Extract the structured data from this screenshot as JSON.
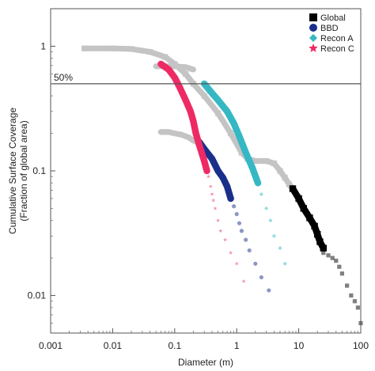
{
  "chart_data": {
    "type": "scatter",
    "title": "",
    "xlabel": "Diameter (m)",
    "ylabel_line1": "Cumulative Surface Coverage",
    "ylabel_line2": "(Fraction of global area)",
    "x_scale": "log",
    "y_scale": "log",
    "xlim": [
      0.001,
      100
    ],
    "ylim": [
      0.005,
      2
    ],
    "x_ticks": [
      {
        "value": 0.001,
        "label": "0.001"
      },
      {
        "value": 0.01,
        "label": "0.01"
      },
      {
        "value": 0.1,
        "label": "0.1"
      },
      {
        "value": 1,
        "label": "1"
      },
      {
        "value": 10,
        "label": "10"
      },
      {
        "value": 100,
        "label": "100"
      }
    ],
    "y_ticks": [
      {
        "value": 1,
        "label": "1"
      },
      {
        "value": 0.1,
        "label": "0.1"
      },
      {
        "value": 0.01,
        "label": "0.01"
      }
    ],
    "grid": false,
    "legend_position": "top-right",
    "reference_line": {
      "y": 0.5,
      "label": "50%"
    },
    "series": [
      {
        "name": "Global",
        "marker": "square",
        "color": "#000000",
        "background_color": "#c4c4c4",
        "segments": [
          {
            "label": "background",
            "x": [
              0.0035,
              0.01,
              0.02,
              0.04,
              0.07,
              0.1,
              0.15,
              0.2,
              0.3,
              0.5,
              0.8,
              1.2,
              1.5,
              2.0,
              3.0,
              4.0,
              5.0,
              6.0,
              7.0,
              8.0
            ],
            "y": [
              0.96,
              0.96,
              0.95,
              0.9,
              0.82,
              0.72,
              0.6,
              0.5,
              0.4,
              0.29,
              0.2,
              0.14,
              0.125,
              0.12,
              0.12,
              0.115,
              0.1,
              0.088,
              0.078,
              0.072
            ]
          },
          {
            "label": "highlight",
            "x": [
              8.0,
              10,
              12,
              15,
              18,
              20,
              22,
              25
            ],
            "y": [
              0.072,
              0.06,
              0.05,
              0.042,
              0.036,
              0.031,
              0.027,
              0.024
            ]
          },
          {
            "label": "tail",
            "x": [
              25,
              30,
              35,
              40,
              45,
              50,
              60,
              70,
              80,
              90,
              100
            ],
            "y": [
              0.022,
              0.021,
              0.02,
              0.019,
              0.017,
              0.015,
              0.012,
              0.01,
              0.009,
              0.008,
              0.006
            ]
          }
        ]
      },
      {
        "name": "BBD",
        "marker": "circle",
        "color": "#1a2f8a",
        "background_color": "#c4c4c4",
        "segments": [
          {
            "label": "background",
            "x": [
              0.06,
              0.08,
              0.1,
              0.13,
              0.17,
              0.2,
              0.24
            ],
            "y": [
              0.205,
              0.205,
              0.2,
              0.195,
              0.185,
              0.175,
              0.168
            ]
          },
          {
            "label": "highlight",
            "x": [
              0.25,
              0.3,
              0.4,
              0.5,
              0.6,
              0.7,
              0.8
            ],
            "y": [
              0.17,
              0.15,
              0.125,
              0.1,
              0.088,
              0.075,
              0.06
            ]
          },
          {
            "label": "tail",
            "x": [
              0.9,
              1.0,
              1.1,
              1.2,
              1.4,
              1.6,
              2.0,
              2.5,
              3.3
            ],
            "y": [
              0.052,
              0.045,
              0.038,
              0.033,
              0.028,
              0.023,
              0.018,
              0.014,
              0.011
            ]
          }
        ]
      },
      {
        "name": "Recon A",
        "marker": "diamond",
        "color": "#35b8c4",
        "background_color": "#c4c4c4",
        "segments": [
          {
            "label": "background",
            "x": [
              0.05,
              0.07,
              0.1,
              0.15,
              0.2
            ],
            "y": [
              0.69,
              0.69,
              0.69,
              0.68,
              0.65
            ]
          },
          {
            "label": "highlight",
            "x": [
              0.3,
              0.4,
              0.5,
              0.7,
              0.9,
              1.1,
              1.4,
              1.8,
              2.2
            ],
            "y": [
              0.5,
              0.42,
              0.37,
              0.3,
              0.24,
              0.19,
              0.14,
              0.105,
              0.08
            ]
          },
          {
            "label": "tail",
            "x": [
              2.5,
              3.0,
              3.5,
              4.0,
              5.0,
              6.0
            ],
            "y": [
              0.065,
              0.05,
              0.04,
              0.03,
              0.024,
              0.018
            ]
          }
        ]
      },
      {
        "name": "Recon C",
        "marker": "star",
        "color": "#ee2a65",
        "background_color": "#c4c4c4",
        "segments": [
          {
            "label": "highlight",
            "x": [
              0.06,
              0.08,
              0.1,
              0.12,
              0.15,
              0.18,
              0.2,
              0.22,
              0.25,
              0.3,
              0.33
            ],
            "y": [
              0.72,
              0.65,
              0.56,
              0.47,
              0.37,
              0.3,
              0.25,
              0.2,
              0.16,
              0.12,
              0.1
            ]
          },
          {
            "label": "tail",
            "x": [
              0.35,
              0.38,
              0.4,
              0.42,
              0.45,
              0.5,
              0.55,
              0.65,
              0.8,
              1.0,
              1.3
            ],
            "y": [
              0.09,
              0.075,
              0.065,
              0.058,
              0.05,
              0.04,
              0.033,
              0.028,
              0.022,
              0.018,
              0.013
            ]
          }
        ]
      }
    ]
  }
}
